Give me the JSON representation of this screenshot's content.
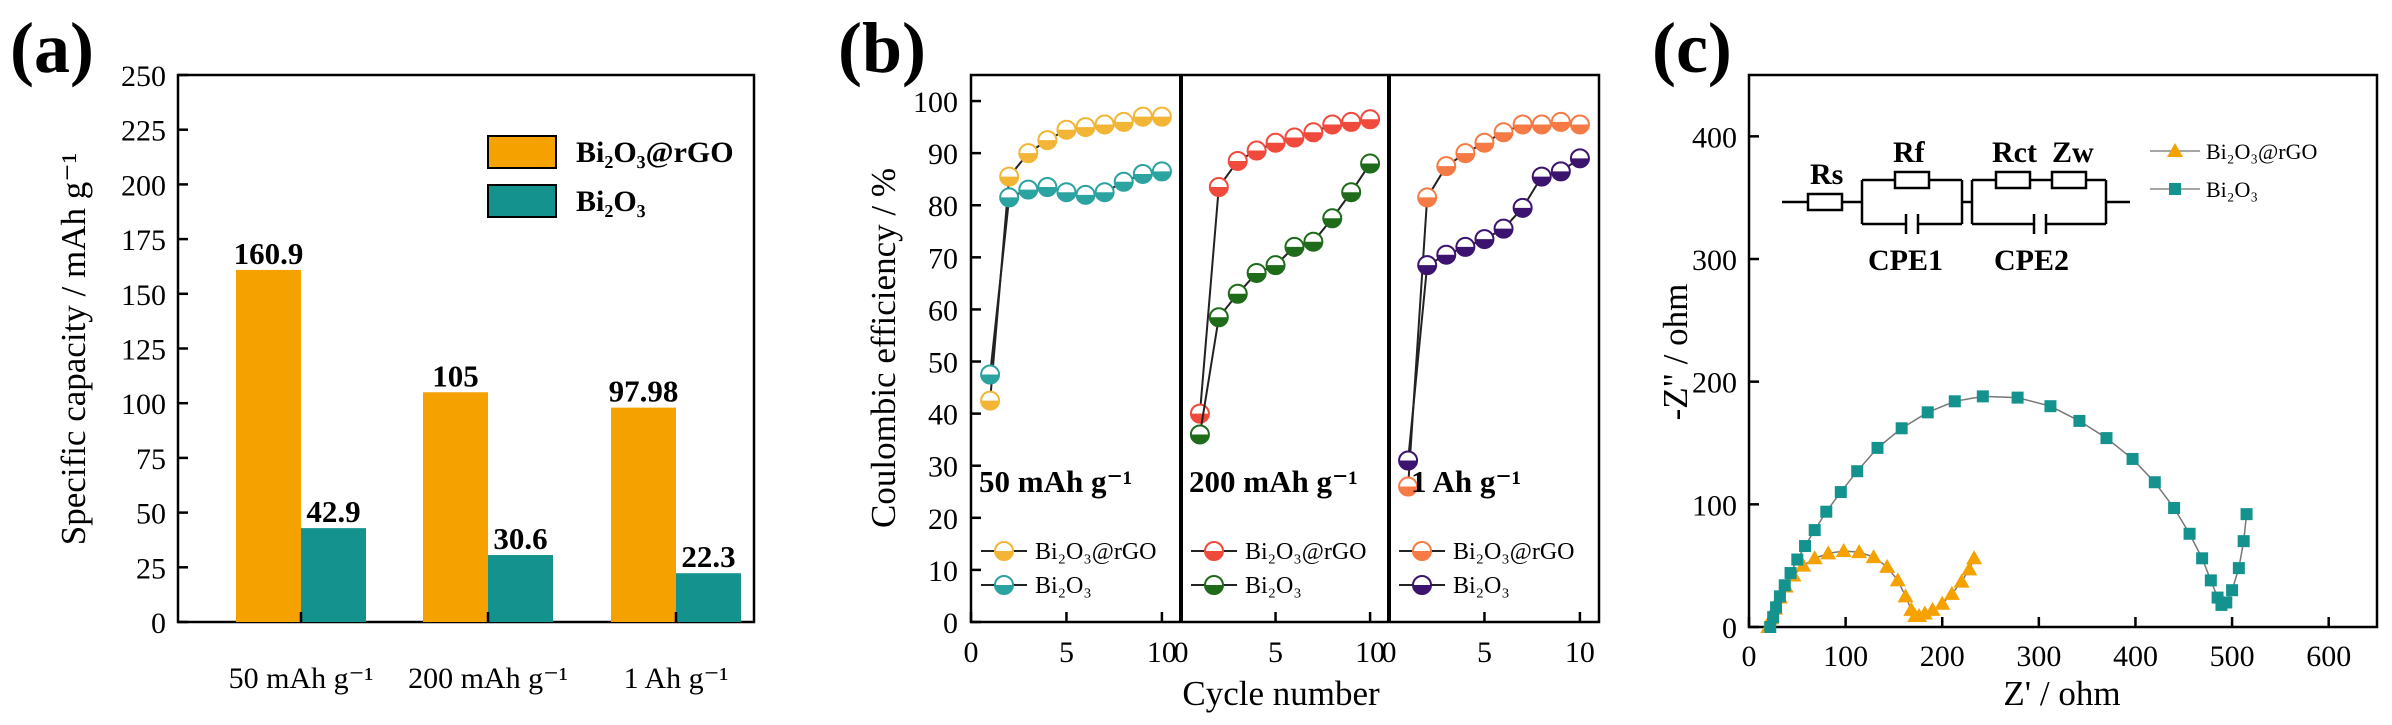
{
  "panels": {
    "a": {
      "label": "(a)"
    },
    "b": {
      "label": "(b)"
    },
    "c": {
      "label": "(c)"
    }
  },
  "colors": {
    "orange": "#F5A100",
    "teal": "#14938E",
    "red": "#F04A3C",
    "green": "#1E6B1A",
    "salmon": "#F57A45",
    "purple": "#3C1470",
    "yellow": "#F2B535",
    "cyan": "#2BA3A0"
  },
  "chart_data": [
    {
      "type": "bar",
      "panel": "a",
      "ylabel": "Specific capacity / mAh g⁻¹",
      "ylim": [
        0,
        250
      ],
      "yticks": [
        0,
        25,
        50,
        75,
        100,
        125,
        150,
        175,
        200,
        225,
        250
      ],
      "categories": [
        "50 mAh g⁻¹",
        "200 mAh g⁻¹",
        "1 Ah g⁻¹"
      ],
      "series": [
        {
          "name": "Bi₂O₃@rGO",
          "color": "#F5A100",
          "values": [
            160.9,
            105,
            97.98
          ],
          "labels": [
            "160.9",
            "105",
            "97.98"
          ]
        },
        {
          "name": "Bi₂O₃",
          "color": "#14938E",
          "values": [
            42.9,
            30.6,
            22.3
          ],
          "labels": [
            "42.9",
            "30.6",
            "22.3"
          ]
        }
      ]
    },
    {
      "type": "line",
      "panel": "b",
      "ylabel": "Coulombic efficiency / %",
      "xlabel": "Cycle number",
      "ylim": [
        0,
        105
      ],
      "yticks": [
        0,
        10,
        20,
        30,
        40,
        50,
        60,
        70,
        80,
        90,
        100
      ],
      "xlim": [
        0,
        11
      ],
      "xticks": [
        0,
        5,
        10
      ],
      "subpanels": [
        {
          "rate": "50 mAh g⁻¹",
          "series": [
            {
              "name": "Bi₂O₃@rGO",
              "color": "#F2B535",
              "x": [
                1,
                2,
                3,
                4,
                5,
                6,
                7,
                8,
                9,
                10
              ],
              "y": [
                42.5,
                85.5,
                90,
                92.5,
                94.5,
                95,
                95.5,
                96,
                97,
                97
              ]
            },
            {
              "name": "Bi₂O₃",
              "color": "#2BA3A0",
              "x": [
                1,
                2,
                3,
                4,
                5,
                6,
                7,
                8,
                9,
                10
              ],
              "y": [
                47.5,
                81.5,
                83,
                83.5,
                82.5,
                82,
                82.5,
                84.5,
                86,
                86.5
              ]
            }
          ]
        },
        {
          "rate": "200 mAh g⁻¹",
          "series": [
            {
              "name": "Bi₂O₃@rGO",
              "color": "#F04A3C",
              "x": [
                1,
                2,
                3,
                4,
                5,
                6,
                7,
                8,
                9,
                10
              ],
              "y": [
                40,
                83.5,
                88.5,
                90.5,
                92,
                93,
                94,
                95.5,
                96,
                96.5
              ]
            },
            {
              "name": "Bi₂O₃",
              "color": "#1E6B1A",
              "x": [
                1,
                2,
                3,
                4,
                5,
                6,
                7,
                8,
                9,
                10
              ],
              "y": [
                36,
                58.5,
                63,
                67,
                68.5,
                72,
                73,
                77.5,
                82.5,
                88
              ]
            }
          ]
        },
        {
          "rate": "1 Ah g⁻¹",
          "series": [
            {
              "name": "Bi₂O₃@rGO",
              "color": "#F57A45",
              "x": [
                1,
                2,
                3,
                4,
                5,
                6,
                7,
                8,
                9,
                10
              ],
              "y": [
                26,
                81.5,
                87.5,
                90,
                92,
                94,
                95.5,
                95.5,
                96,
                95.5
              ]
            },
            {
              "name": "Bi₂O₃",
              "color": "#3C1470",
              "x": [
                1,
                2,
                3,
                4,
                5,
                6,
                7,
                8,
                9,
                10
              ],
              "y": [
                31,
                68.5,
                70.5,
                72,
                73.5,
                75.5,
                79.5,
                85.5,
                86.5,
                89
              ]
            }
          ]
        }
      ]
    },
    {
      "type": "scatter",
      "panel": "c",
      "xlabel": "Z' / ohm",
      "ylabel": "-Z\" / ohm",
      "xlim": [
        0,
        650
      ],
      "ylim": [
        0,
        450
      ],
      "xticks": [
        0,
        100,
        200,
        300,
        400,
        500,
        600
      ],
      "yticks": [
        0,
        100,
        200,
        300,
        400
      ],
      "circuit": {
        "Rs": "Rs",
        "Rf": "Rf",
        "Rct": "Rct",
        "Zw": "Zw",
        "cpe1": "CPE1",
        "cpe2": "CPE2"
      },
      "series": [
        {
          "name": "Bi₂O₃@rGO",
          "color": "#F5A100",
          "marker": "triangle",
          "x": [
            20,
            23,
            27,
            32,
            38,
            46,
            56,
            68,
            82,
            98,
            114,
            129,
            143,
            154,
            162,
            168,
            172,
            176,
            182,
            190,
            200,
            210,
            220,
            228,
            233
          ],
          "y": [
            0,
            7,
            15,
            24,
            33,
            42,
            50,
            56,
            60,
            62,
            61,
            57,
            49,
            38,
            25,
            14,
            9,
            9,
            11,
            14,
            19,
            27,
            37,
            47,
            56
          ]
        },
        {
          "name": "Bi₂O₃",
          "color": "#14938E",
          "marker": "square",
          "x": [
            22,
            25,
            28,
            32,
            37,
            43,
            50,
            58,
            68,
            80,
            95,
            112,
            133,
            158,
            185,
            213,
            242,
            278,
            312,
            342,
            370,
            397,
            420,
            440,
            456,
            469,
            478,
            485,
            489,
            494,
            500,
            507,
            512,
            515
          ],
          "y": [
            0,
            8,
            16,
            25,
            34,
            44,
            55,
            66,
            79,
            94,
            110,
            127,
            146,
            162,
            175,
            184,
            188,
            187,
            180,
            168,
            154,
            137,
            118,
            97,
            76,
            56,
            38,
            24,
            18,
            20,
            30,
            48,
            70,
            92
          ]
        }
      ]
    }
  ]
}
